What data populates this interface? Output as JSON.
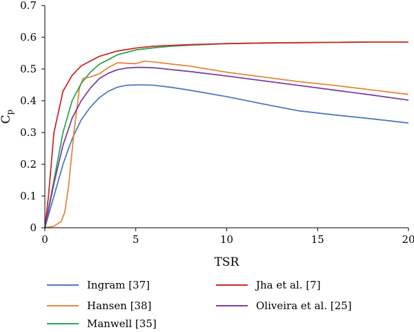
{
  "chart_data": {
    "type": "line",
    "title": "",
    "xlabel": "TSR",
    "ylabel": "C",
    "ylabel_sub": "p",
    "xlim": [
      0,
      20
    ],
    "ylim": [
      0,
      0.7
    ],
    "xticks": [
      0,
      5,
      10,
      15,
      20
    ],
    "yticks": [
      0,
      0.1,
      0.2,
      0.3,
      0.4,
      0.5,
      0.6,
      0.7
    ],
    "xtick_labels": [
      "0",
      "5",
      "10",
      "15",
      "20"
    ],
    "ytick_labels": [
      "0",
      "0.1",
      "0.2",
      "0.3",
      "0.4",
      "0.5",
      "0.6",
      "0.7"
    ],
    "grid": false,
    "legend_position": "bottom",
    "series": [
      {
        "name": "Ingram [37]",
        "color": "#4e79c2",
        "points": [
          [
            0,
            0
          ],
          [
            0.5,
            0.1
          ],
          [
            1,
            0.2
          ],
          [
            1.5,
            0.28
          ],
          [
            2,
            0.34
          ],
          [
            2.5,
            0.38
          ],
          [
            3,
            0.41
          ],
          [
            3.5,
            0.43
          ],
          [
            4,
            0.443
          ],
          [
            4.5,
            0.449
          ],
          [
            5,
            0.45
          ],
          [
            5.5,
            0.45
          ],
          [
            6,
            0.449
          ],
          [
            7,
            0.442
          ],
          [
            8,
            0.433
          ],
          [
            10,
            0.413
          ],
          [
            12,
            0.39
          ],
          [
            14,
            0.368
          ],
          [
            16,
            0.355
          ],
          [
            18,
            0.343
          ],
          [
            20,
            0.33
          ]
        ]
      },
      {
        "name": "Hansen [38]",
        "color": "#e8853d",
        "points": [
          [
            0,
            0
          ],
          [
            0.5,
            0.005
          ],
          [
            0.9,
            0.02
          ],
          [
            1.1,
            0.05
          ],
          [
            1.3,
            0.13
          ],
          [
            1.6,
            0.3
          ],
          [
            1.9,
            0.44
          ],
          [
            2.1,
            0.47
          ],
          [
            2.5,
            0.475
          ],
          [
            3,
            0.485
          ],
          [
            3.5,
            0.505
          ],
          [
            4,
            0.52
          ],
          [
            4.5,
            0.518
          ],
          [
            5,
            0.517
          ],
          [
            5.5,
            0.525
          ],
          [
            6,
            0.522
          ],
          [
            8,
            0.509
          ],
          [
            10,
            0.49
          ],
          [
            12,
            0.475
          ],
          [
            14,
            0.46
          ],
          [
            16,
            0.448
          ],
          [
            18,
            0.434
          ],
          [
            20,
            0.42
          ]
        ]
      },
      {
        "name": "Manwell [35]",
        "color": "#2ea352",
        "points": [
          [
            0,
            0
          ],
          [
            0.5,
            0.15
          ],
          [
            1,
            0.3
          ],
          [
            1.5,
            0.4
          ],
          [
            2,
            0.455
          ],
          [
            2.5,
            0.49
          ],
          [
            3,
            0.515
          ],
          [
            4,
            0.545
          ],
          [
            5,
            0.56
          ],
          [
            6,
            0.567
          ],
          [
            7,
            0.572
          ],
          [
            8,
            0.575
          ],
          [
            10,
            0.58
          ],
          [
            12,
            0.582
          ],
          [
            14,
            0.583
          ],
          [
            16,
            0.584
          ],
          [
            18,
            0.585
          ],
          [
            20,
            0.585
          ]
        ]
      },
      {
        "name": "Jha et al. [7]",
        "color": "#c92a2a",
        "points": [
          [
            0,
            0
          ],
          [
            0.2,
            0.1
          ],
          [
            0.5,
            0.3
          ],
          [
            1,
            0.43
          ],
          [
            1.5,
            0.48
          ],
          [
            2,
            0.51
          ],
          [
            3,
            0.54
          ],
          [
            4,
            0.557
          ],
          [
            5,
            0.566
          ],
          [
            6,
            0.572
          ],
          [
            8,
            0.577
          ],
          [
            10,
            0.58
          ],
          [
            12,
            0.582
          ],
          [
            14,
            0.583
          ],
          [
            16,
            0.584
          ],
          [
            18,
            0.585
          ],
          [
            20,
            0.585
          ]
        ]
      },
      {
        "name": "Oliveira et al. [25]",
        "color": "#7b3fa0",
        "points": [
          [
            0,
            0
          ],
          [
            0.5,
            0.14
          ],
          [
            1,
            0.26
          ],
          [
            1.5,
            0.345
          ],
          [
            2,
            0.4
          ],
          [
            2.5,
            0.44
          ],
          [
            3,
            0.47
          ],
          [
            3.5,
            0.487
          ],
          [
            4,
            0.498
          ],
          [
            4.5,
            0.503
          ],
          [
            5,
            0.505
          ],
          [
            5.5,
            0.505
          ],
          [
            6,
            0.504
          ],
          [
            8,
            0.492
          ],
          [
            10,
            0.478
          ],
          [
            12,
            0.463
          ],
          [
            14,
            0.448
          ],
          [
            16,
            0.433
          ],
          [
            18,
            0.418
          ],
          [
            20,
            0.402
          ]
        ]
      }
    ]
  }
}
